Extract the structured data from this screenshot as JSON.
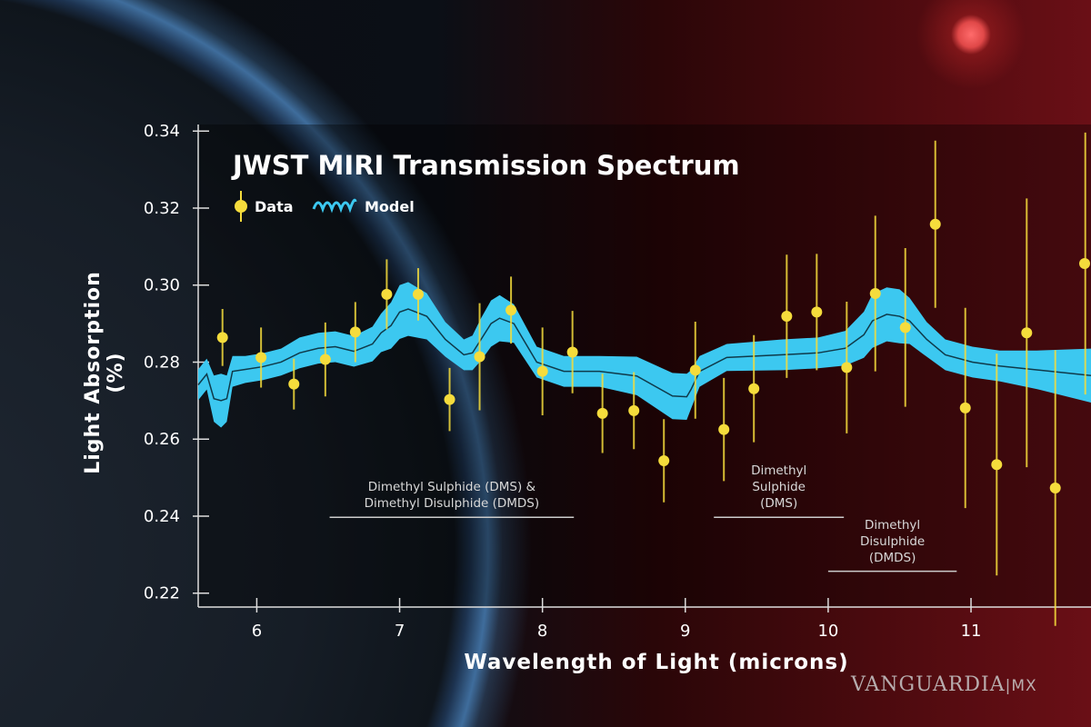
{
  "chart_data": {
    "type": "scatter",
    "title": "JWST MIRI Transmission Spectrum",
    "xlabel": "Wavelength of Light (microns)",
    "ylabel": "Light Absorption (%)",
    "xlim": [
      5.59,
      11.84
    ],
    "ylim": [
      0.2164,
      0.3417
    ],
    "xticks": [
      "6",
      "7",
      "8",
      "9",
      "10",
      "11"
    ],
    "yticks": [
      "0.22",
      "0.24",
      "0.26",
      "0.28",
      "0.30",
      "0.32",
      "0.34"
    ],
    "grid": false,
    "legend": {
      "placement": "top-left",
      "entries": [
        "Data",
        "Model"
      ]
    },
    "colors": {
      "data": "#f5dc3c",
      "model": "#3cc8f0",
      "model_line": "#0f3a4a"
    },
    "series": [
      {
        "name": "Data",
        "type": "scatter_errorbar",
        "x": [
          5.76,
          6.03,
          6.26,
          6.48,
          6.69,
          6.91,
          7.13,
          7.35,
          7.56,
          7.78,
          8.0,
          8.21,
          8.42,
          8.64,
          8.85,
          9.07,
          9.27,
          9.48,
          9.71,
          9.92,
          10.13,
          10.33,
          10.54,
          10.75,
          10.96,
          11.18,
          11.39,
          11.59,
          11.8
        ],
        "y": [
          0.2864,
          0.2812,
          0.2743,
          0.2807,
          0.2878,
          0.2976,
          0.2976,
          0.2703,
          0.2814,
          0.2935,
          0.2776,
          0.2826,
          0.2667,
          0.2674,
          0.2544,
          0.2779,
          0.2625,
          0.2731,
          0.2919,
          0.293,
          0.2786,
          0.2978,
          0.289,
          0.3158,
          0.2681,
          0.2534,
          0.2876,
          0.2473,
          0.3056
        ],
        "err": [
          0.0074,
          0.0078,
          0.0066,
          0.0096,
          0.0078,
          0.0091,
          0.0068,
          0.0082,
          0.0139,
          0.0087,
          0.0114,
          0.0107,
          0.0103,
          0.01,
          0.0108,
          0.0126,
          0.0134,
          0.0139,
          0.016,
          0.0151,
          0.0171,
          0.0202,
          0.0206,
          0.0217,
          0.026,
          0.0288,
          0.0349,
          0.0358,
          0.034
        ]
      },
      {
        "name": "Model",
        "type": "line_band",
        "x": [
          5.59,
          5.65,
          5.7,
          5.75,
          5.79,
          5.83,
          5.92,
          6.04,
          6.17,
          6.3,
          6.43,
          6.55,
          6.68,
          6.81,
          6.87,
          6.94,
          7.0,
          7.06,
          7.19,
          7.32,
          7.45,
          7.51,
          7.57,
          7.64,
          7.7,
          7.8,
          7.96,
          8.15,
          8.4,
          8.66,
          8.91,
          9.01,
          9.04,
          9.1,
          9.29,
          9.68,
          9.93,
          10.12,
          10.25,
          10.31,
          10.41,
          10.5,
          10.57,
          10.69,
          10.82,
          11.01,
          11.2,
          11.46,
          11.84
        ],
        "y": [
          0.2741,
          0.2769,
          0.2705,
          0.27,
          0.2705,
          0.2776,
          0.2781,
          0.2788,
          0.28,
          0.2824,
          0.2836,
          0.284,
          0.2828,
          0.2847,
          0.2876,
          0.2895,
          0.293,
          0.2938,
          0.2919,
          0.2859,
          0.2819,
          0.2824,
          0.2859,
          0.29,
          0.2914,
          0.29,
          0.28,
          0.2776,
          0.2776,
          0.2764,
          0.2712,
          0.271,
          0.2729,
          0.2776,
          0.2812,
          0.2819,
          0.2824,
          0.2836,
          0.2871,
          0.2907,
          0.2924,
          0.2919,
          0.2907,
          0.2859,
          0.2819,
          0.28,
          0.279,
          0.278,
          0.2765
        ],
        "band": [
          0.004,
          0.004,
          0.006,
          0.007,
          0.006,
          0.004,
          0.0035,
          0.0035,
          0.0035,
          0.004,
          0.004,
          0.004,
          0.004,
          0.0045,
          0.005,
          0.006,
          0.007,
          0.007,
          0.006,
          0.0045,
          0.004,
          0.0045,
          0.0055,
          0.006,
          0.006,
          0.005,
          0.004,
          0.004,
          0.004,
          0.005,
          0.006,
          0.006,
          0.005,
          0.004,
          0.0035,
          0.004,
          0.004,
          0.0045,
          0.006,
          0.007,
          0.007,
          0.007,
          0.006,
          0.0045,
          0.004,
          0.004,
          0.004,
          0.005,
          0.007
        ]
      }
    ],
    "annotations": [
      {
        "text": [
          "Dimethyl Sulphide (DMS) &",
          "Dimethyl Disulphide (DMDS)"
        ],
        "range": [
          6.51,
          8.22
        ],
        "y": 0.2397
      },
      {
        "text": [
          "Dimethyl",
          "Sulphide",
          "(DMS)"
        ],
        "range": [
          9.2,
          10.11
        ],
        "y": 0.2397
      },
      {
        "text": [
          "Dimethyl",
          "Disulphide",
          "(DMDS)"
        ],
        "range": [
          10.0,
          10.9
        ],
        "y": 0.2257
      }
    ]
  },
  "watermark": "VANGUARDIA|MX"
}
